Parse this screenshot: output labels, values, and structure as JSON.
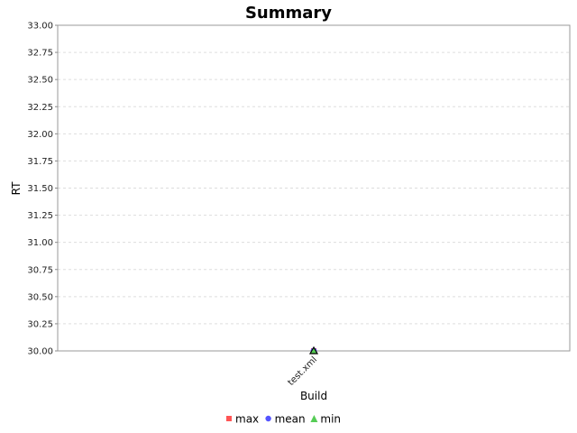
{
  "chart_data": {
    "type": "line",
    "title": "Summary",
    "xlabel": "Build",
    "ylabel": "RT",
    "categories": [
      "test.xml"
    ],
    "ylim": [
      30.0,
      33.0
    ],
    "yticks": [
      "30.00",
      "30.25",
      "30.50",
      "30.75",
      "31.00",
      "31.25",
      "31.50",
      "31.75",
      "32.00",
      "32.25",
      "32.50",
      "32.75",
      "33.00"
    ],
    "grid": true,
    "legend_position": "bottom",
    "series": [
      {
        "name": "max",
        "marker": "square",
        "color": "#ff5555",
        "values": [
          30.0
        ]
      },
      {
        "name": "mean",
        "marker": "circle",
        "color": "#5555ff",
        "values": [
          30.0
        ]
      },
      {
        "name": "min",
        "marker": "triangle",
        "color": "#55cc55",
        "values": [
          30.0
        ]
      }
    ]
  }
}
